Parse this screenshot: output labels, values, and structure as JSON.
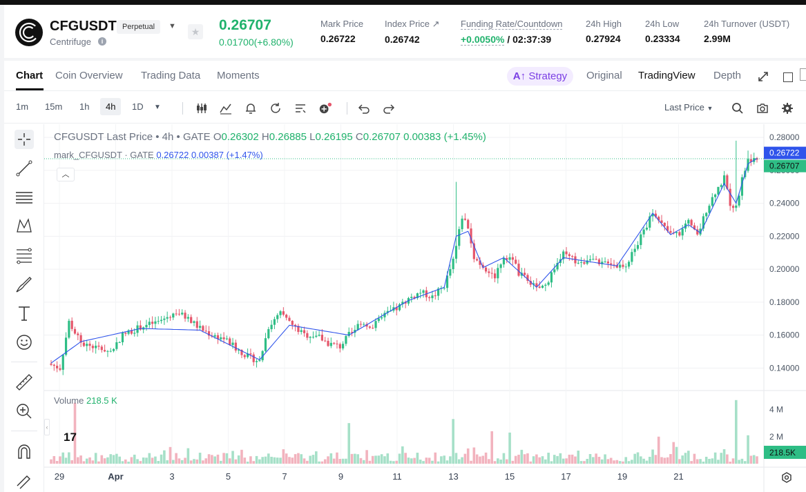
{
  "header": {
    "symbol": "CFGUSDT",
    "contract_type": "Perpetual",
    "name": "Centrifuge",
    "last_price": "0.26707",
    "change": "0.01700(+6.80%)",
    "stats": [
      {
        "label": "Mark Price",
        "value": "0.26722"
      },
      {
        "label": "Index Price ↗",
        "value": "0.26742"
      },
      {
        "label": "Funding Rate/Countdown",
        "value_green": "+0.0050%",
        "value": "/ 02:37:39"
      },
      {
        "label": "24h High",
        "value": "0.27924"
      },
      {
        "label": "24h Low",
        "value": "0.23334"
      },
      {
        "label": "24h Turnover (USDT)",
        "value": "2.99M"
      }
    ]
  },
  "tabs": {
    "left": [
      "Chart",
      "Coin Overview",
      "Trading Data",
      "Moments"
    ],
    "active": "Chart",
    "strategy": "Strategy",
    "right": [
      "Original",
      "TradingView",
      "Depth"
    ]
  },
  "toolbar": {
    "timeframes": [
      "1m",
      "15m",
      "1h",
      "4h",
      "1D"
    ],
    "selected_timeframe": "4h",
    "price_type": "Last Price"
  },
  "legend": {
    "title": "CFGUSDT Last Price • 4h • GATE",
    "o_label": "O",
    "o": "0.26302",
    "h_label": "H",
    "h": "0.26885",
    "l_label": "L",
    "l": "0.26195",
    "c_label": "C",
    "c": "0.26707",
    "change": "0.00383",
    "change_pct": "(+1.45%)",
    "mark_title": "mark_CFGUSDT · GATE",
    "mark_value": "0.26722",
    "mark_change": "0.00387",
    "mark_change_pct": "(+1.47%)",
    "volume_label": "Volume",
    "volume_value": "218.5 K"
  },
  "colors": {
    "up": "#2ebd85",
    "down": "#e5566b",
    "mark": "#2f54eb",
    "vol_up": "#a6e0c8",
    "vol_down": "#f2b3be"
  },
  "chart_data": {
    "type": "candlestick",
    "price_axis_ticks": [
      "0.28000",
      "0.26000",
      "0.24000",
      "0.22000",
      "0.20000",
      "0.18000",
      "0.16000",
      "0.14000"
    ],
    "price_range": [
      0.128,
      0.288
    ],
    "volume_axis_ticks": [
      "4 M",
      "2 M"
    ],
    "volume_range": [
      0,
      5.2
    ],
    "x_tick_labels": [
      "29",
      "Apr",
      "3",
      "5",
      "7",
      "9",
      "11",
      "13",
      "15",
      "17",
      "19",
      "21"
    ],
    "mark_price_tag": "0.26722",
    "last_price_tag": "0.26707",
    "volume_tag": "218.5K",
    "close_anchors": [
      [
        0,
        0.142
      ],
      [
        3,
        0.14
      ],
      [
        6,
        0.168
      ],
      [
        10,
        0.155
      ],
      [
        16,
        0.152
      ],
      [
        20,
        0.15
      ],
      [
        24,
        0.16
      ],
      [
        30,
        0.165
      ],
      [
        36,
        0.168
      ],
      [
        42,
        0.174
      ],
      [
        46,
        0.17
      ],
      [
        50,
        0.164
      ],
      [
        54,
        0.16
      ],
      [
        58,
        0.158
      ],
      [
        62,
        0.152
      ],
      [
        66,
        0.147
      ],
      [
        70,
        0.144
      ],
      [
        73,
        0.165
      ],
      [
        77,
        0.173
      ],
      [
        81,
        0.166
      ],
      [
        85,
        0.16
      ],
      [
        89,
        0.16
      ],
      [
        93,
        0.155
      ],
      [
        97,
        0.153
      ],
      [
        100,
        0.16
      ],
      [
        104,
        0.168
      ],
      [
        108,
        0.165
      ],
      [
        112,
        0.172
      ],
      [
        116,
        0.176
      ],
      [
        120,
        0.182
      ],
      [
        124,
        0.186
      ],
      [
        128,
        0.183
      ],
      [
        132,
        0.19
      ],
      [
        135,
        0.205
      ],
      [
        138,
        0.232
      ],
      [
        140,
        0.226
      ],
      [
        142,
        0.207
      ],
      [
        145,
        0.202
      ],
      [
        149,
        0.196
      ],
      [
        152,
        0.208
      ],
      [
        155,
        0.207
      ],
      [
        157,
        0.197
      ],
      [
        160,
        0.194
      ],
      [
        163,
        0.188
      ],
      [
        166,
        0.19
      ],
      [
        169,
        0.201
      ],
      [
        172,
        0.209
      ],
      [
        175,
        0.206
      ],
      [
        178,
        0.203
      ],
      [
        181,
        0.208
      ],
      [
        184,
        0.202
      ],
      [
        187,
        0.205
      ],
      [
        190,
        0.202
      ],
      [
        193,
        0.203
      ],
      [
        196,
        0.212
      ],
      [
        199,
        0.223
      ],
      [
        202,
        0.235
      ],
      [
        205,
        0.227
      ],
      [
        208,
        0.221
      ],
      [
        211,
        0.222
      ],
      [
        214,
        0.228
      ],
      [
        217,
        0.22
      ],
      [
        220,
        0.236
      ],
      [
        223,
        0.247
      ],
      [
        226,
        0.255
      ],
      [
        228,
        0.24
      ],
      [
        230,
        0.237
      ],
      [
        232,
        0.255
      ],
      [
        234,
        0.266
      ],
      [
        236,
        0.268
      ],
      [
        237,
        0.26707
      ]
    ],
    "mark_price_anchors": [
      [
        0,
        0.143
      ],
      [
        10,
        0.156
      ],
      [
        30,
        0.164
      ],
      [
        50,
        0.163
      ],
      [
        70,
        0.145
      ],
      [
        80,
        0.166
      ],
      [
        100,
        0.16
      ],
      [
        120,
        0.181
      ],
      [
        132,
        0.189
      ],
      [
        136,
        0.22
      ],
      [
        140,
        0.223
      ],
      [
        145,
        0.201
      ],
      [
        152,
        0.207
      ],
      [
        163,
        0.189
      ],
      [
        172,
        0.207
      ],
      [
        190,
        0.202
      ],
      [
        202,
        0.234
      ],
      [
        208,
        0.221
      ],
      [
        214,
        0.227
      ],
      [
        218,
        0.222
      ],
      [
        226,
        0.252
      ],
      [
        230,
        0.24
      ],
      [
        234,
        0.264
      ],
      [
        237,
        0.26722
      ]
    ],
    "volume_spikes": [
      [
        8,
        4.5
      ],
      [
        100,
        3.0
      ],
      [
        135,
        3.3
      ],
      [
        148,
        2.4
      ],
      [
        154,
        2.3
      ],
      [
        204,
        2.0
      ],
      [
        230,
        4.7
      ],
      [
        234,
        2.1
      ],
      [
        142,
        1.2
      ],
      [
        209,
        1.6
      ]
    ]
  }
}
